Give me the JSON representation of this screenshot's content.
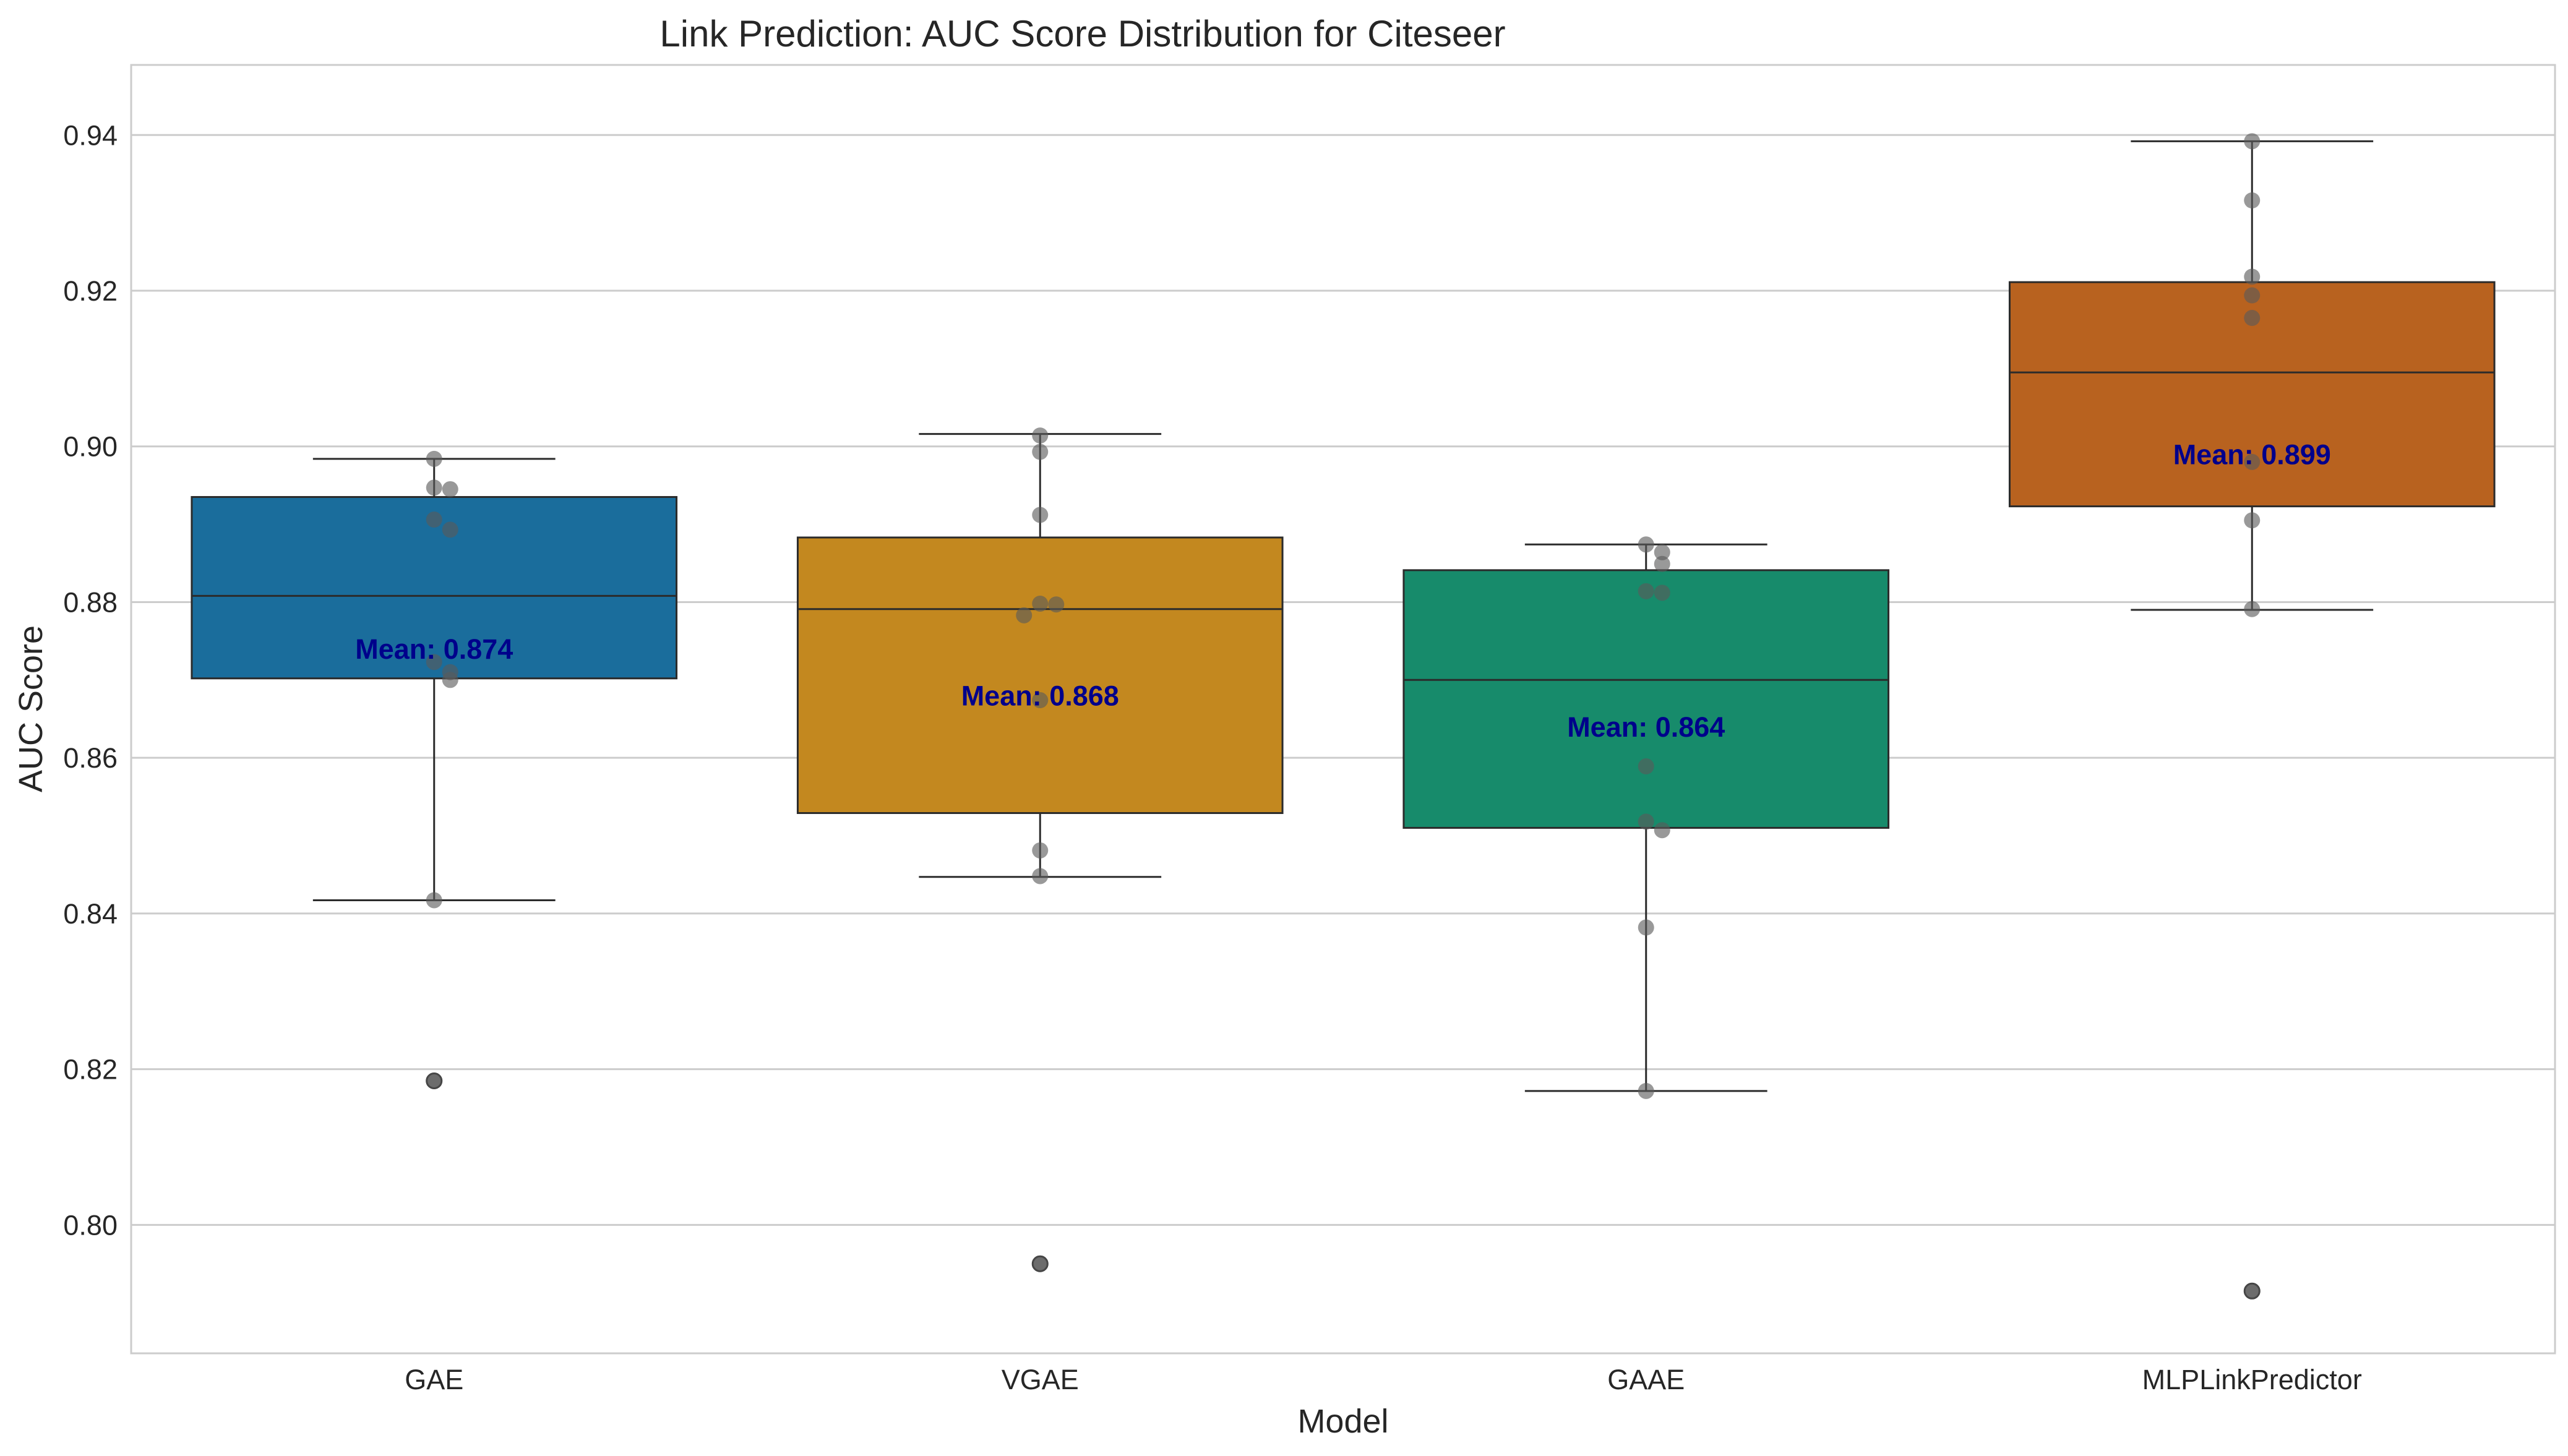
{
  "chart_data": {
    "type": "box",
    "title": "Link Prediction: AUC Score Distribution for Citeseer",
    "xlabel": "Model",
    "ylabel": "AUC Score",
    "ylim": [
      0.7835,
      0.949
    ],
    "yticks": [
      0.8,
      0.82,
      0.84,
      0.86,
      0.88,
      0.9,
      0.92,
      0.94
    ],
    "ytick_labels": [
      "0.80",
      "0.82",
      "0.84",
      "0.86",
      "0.88",
      "0.90",
      "0.92",
      "0.94"
    ],
    "grid": true,
    "mean_label_color": "#00008b",
    "point_color": "#666666",
    "categories": [
      "GAE",
      "VGAE",
      "GAAE",
      "MLPLinkPredictor"
    ],
    "series": [
      {
        "category": "GAE",
        "color": "#1a6d9c",
        "whisker_low": 0.8417,
        "q1": 0.8702,
        "median": 0.8808,
        "q3": 0.8935,
        "whisker_high": 0.8984,
        "mean": 0.874,
        "mean_label": "Mean: 0.874",
        "outliers": [
          0.8185
        ],
        "points": [
          0.8984,
          0.8947,
          0.8945,
          0.8906,
          0.8893,
          0.8723,
          0.871,
          0.87,
          0.8417,
          0.8185
        ]
      },
      {
        "category": "VGAE",
        "color": "#c3881f",
        "whisker_low": 0.8447,
        "q1": 0.8529,
        "median": 0.8791,
        "q3": 0.8883,
        "whisker_high": 0.9016,
        "mean": 0.868,
        "mean_label": "Mean: 0.868",
        "outliers": [
          0.795
        ],
        "points": [
          0.9014,
          0.8993,
          0.8912,
          0.8798,
          0.8797,
          0.8783,
          0.8674,
          0.8481,
          0.8448,
          0.795
        ]
      },
      {
        "category": "GAAE",
        "color": "#178b6b",
        "whisker_low": 0.8172,
        "q1": 0.851,
        "median": 0.87,
        "q3": 0.8841,
        "whisker_high": 0.8874,
        "mean": 0.864,
        "mean_label": "Mean: 0.864",
        "outliers": [],
        "points": [
          0.8874,
          0.8864,
          0.8849,
          0.8814,
          0.8812,
          0.8589,
          0.8518,
          0.8507,
          0.8382,
          0.8172
        ]
      },
      {
        "category": "MLPLinkPredictor",
        "color": "#b8621f",
        "whisker_low": 0.879,
        "q1": 0.8923,
        "median": 0.9095,
        "q3": 0.9211,
        "whisker_high": 0.9392,
        "mean": 0.899,
        "mean_label": "Mean: 0.899",
        "outliers": [
          0.7915
        ],
        "points": [
          0.9392,
          0.9316,
          0.9218,
          0.9194,
          0.9165,
          0.898,
          0.8905,
          0.8791,
          0.7915
        ]
      }
    ]
  }
}
